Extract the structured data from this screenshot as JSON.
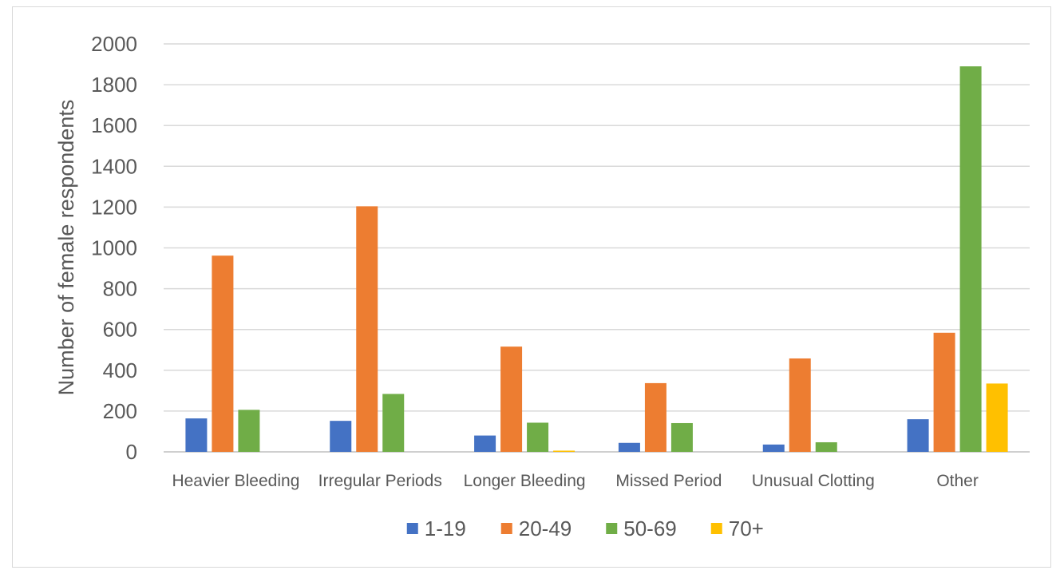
{
  "chart_data": {
    "type": "bar",
    "title": "",
    "xlabel": "",
    "ylabel": "Number of female respondents",
    "ylim": [
      0,
      2000
    ],
    "yticks": [
      0,
      200,
      400,
      600,
      800,
      1000,
      1200,
      1400,
      1600,
      1800,
      2000
    ],
    "grid": true,
    "legend_position": "bottom",
    "categories": [
      "Heavier Bleeding",
      "Irregular Periods",
      "Longer Bleeding",
      "Missed Period",
      "Unusual Clotting",
      "Other"
    ],
    "series": [
      {
        "name": "1-19",
        "color": "#4472c4",
        "values": [
          164,
          152,
          80,
          44,
          36,
          160
        ]
      },
      {
        "name": "20-49",
        "color": "#ed7d31",
        "values": [
          962,
          1204,
          516,
          337,
          458,
          584
        ]
      },
      {
        "name": "50-69",
        "color": "#70ad47",
        "values": [
          206,
          284,
          143,
          141,
          47,
          1890
        ]
      },
      {
        "name": "70+",
        "color": "#ffc000",
        "values": [
          0,
          0,
          6,
          0,
          0,
          335
        ]
      }
    ]
  }
}
